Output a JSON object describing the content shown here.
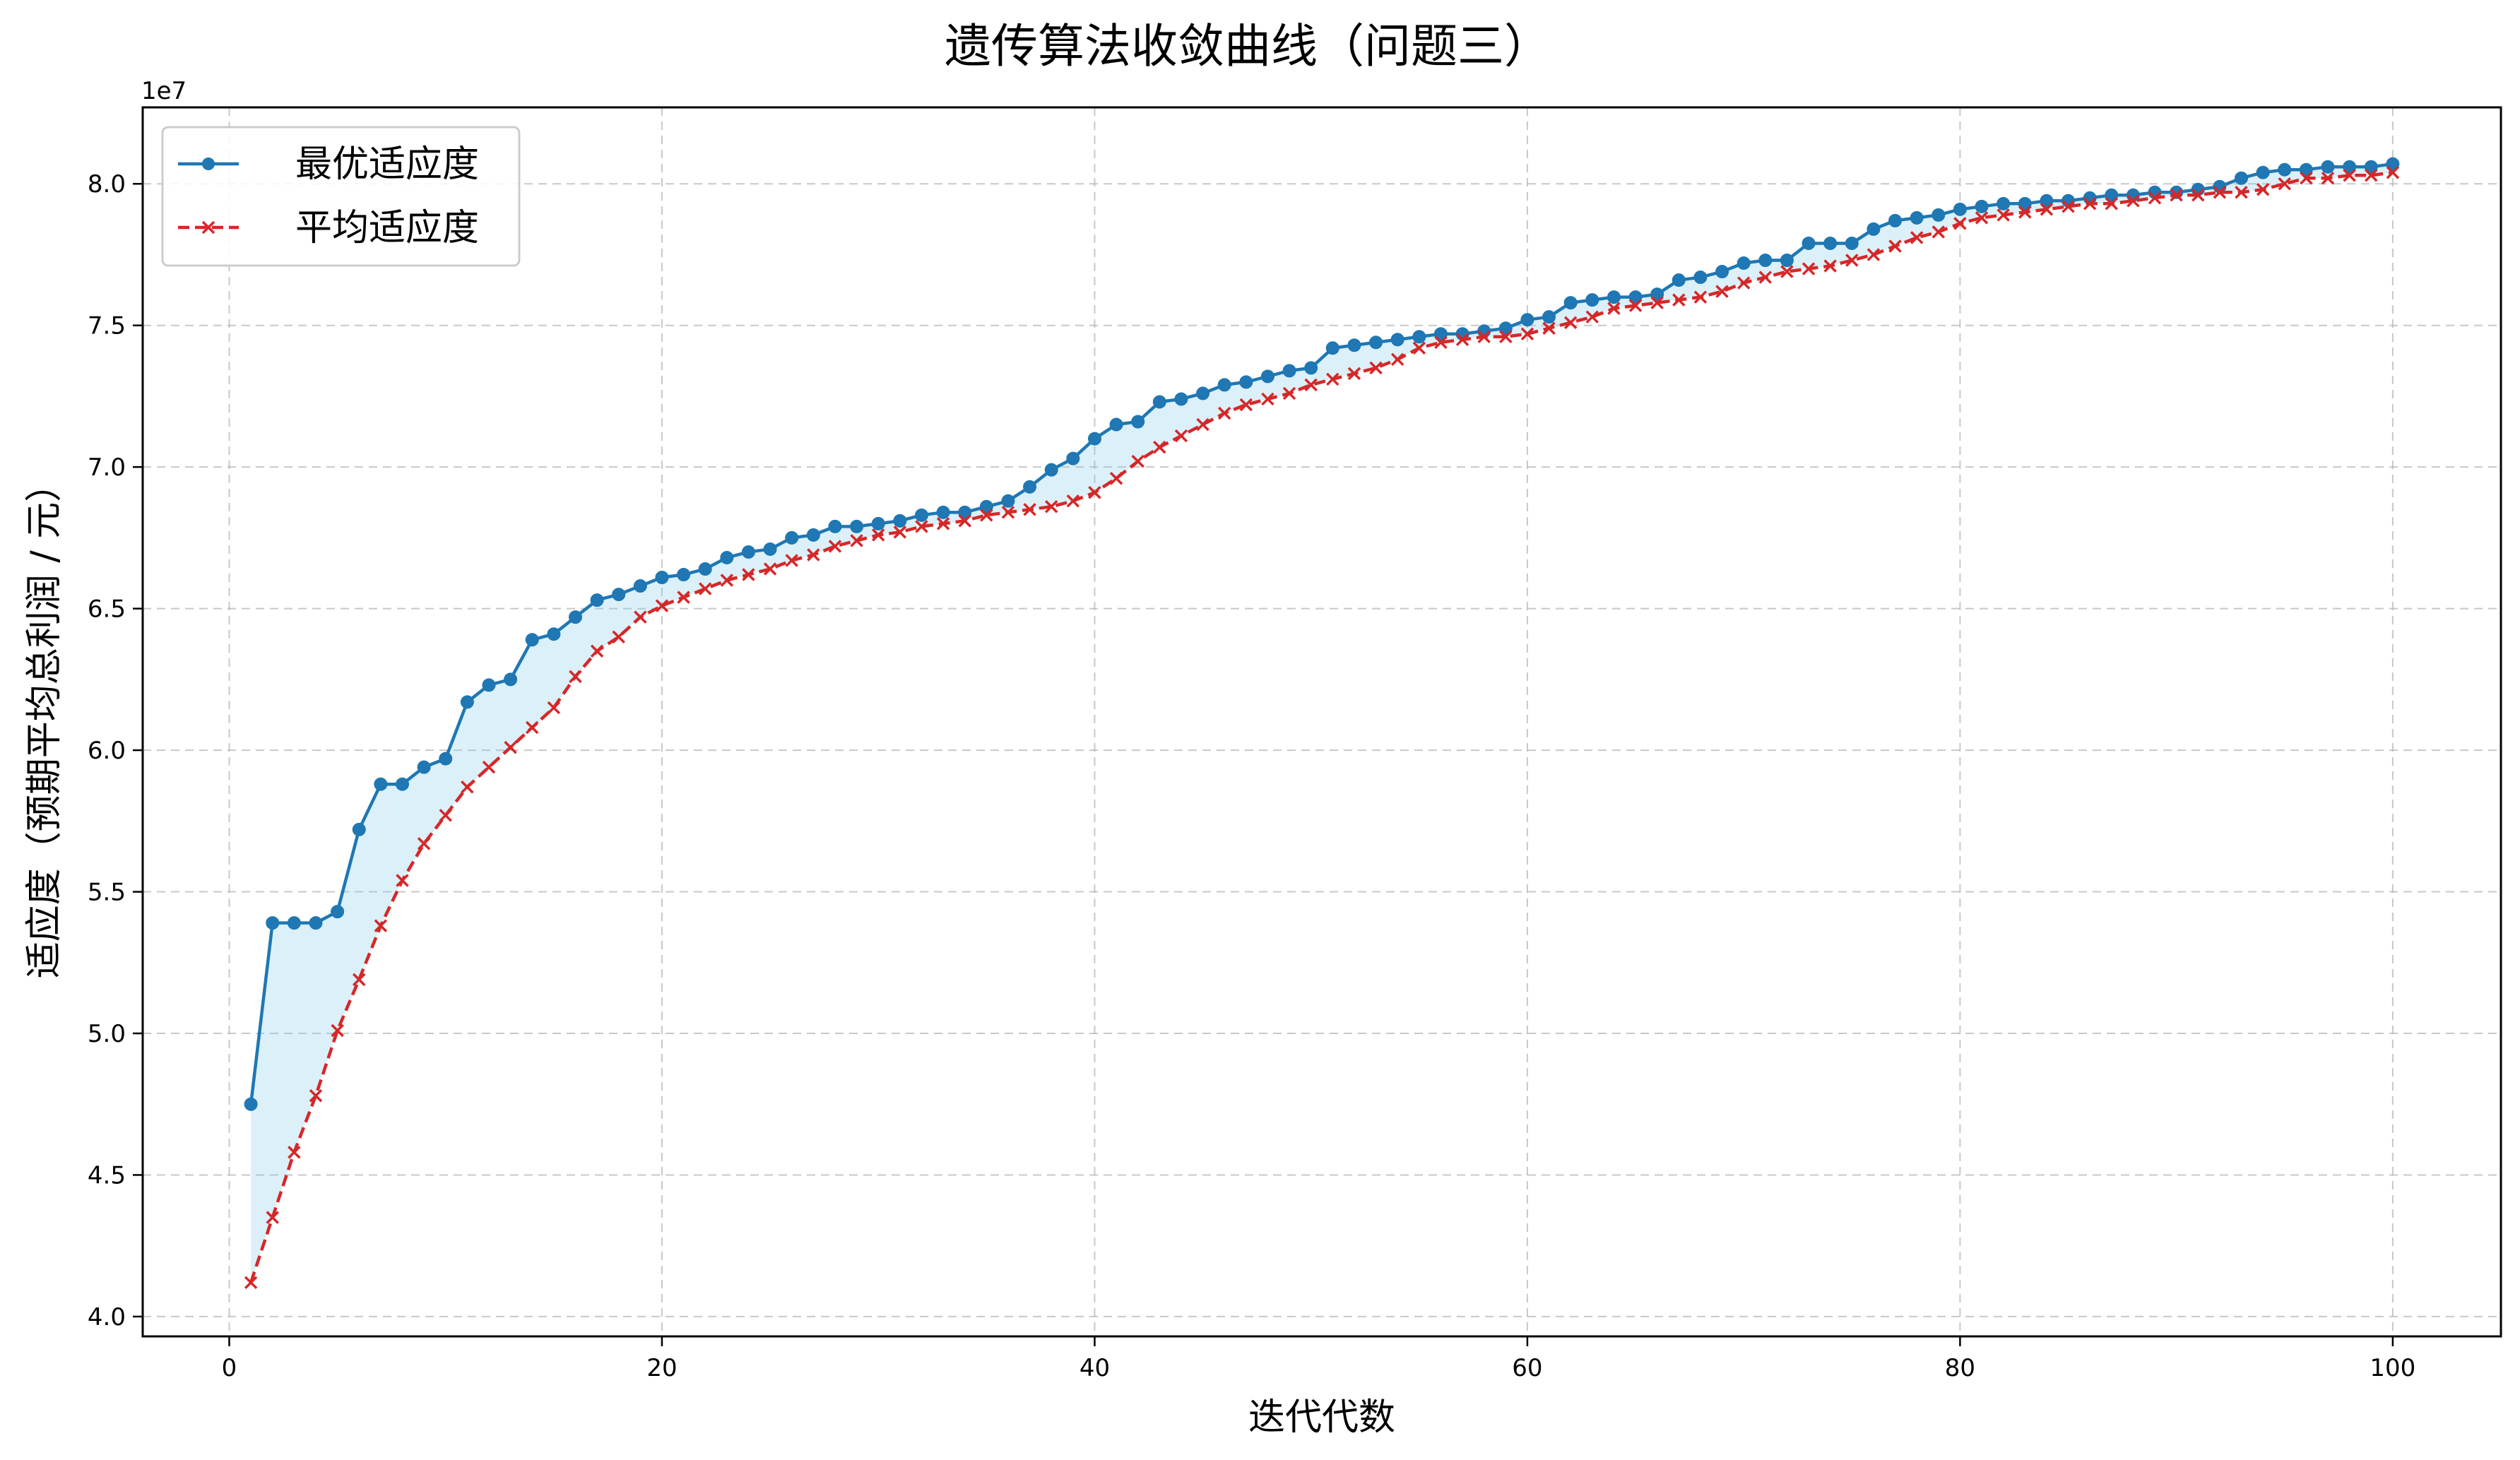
{
  "chart_data": {
    "type": "line",
    "title": "遗传算法收敛曲线（问题三）",
    "xlabel": "迭代代数",
    "ylabel": "适应度（预期平均总利润 / 元）",
    "y_offset_label": "1e7",
    "xlim": [
      -4,
      105
    ],
    "ylim": [
      39300000.0,
      82700000.0
    ],
    "x_ticks": [
      0,
      20,
      40,
      60,
      80,
      100
    ],
    "y_ticks": [
      40000000.0,
      45000000.0,
      50000000.0,
      55000000.0,
      60000000.0,
      65000000.0,
      70000000.0,
      75000000.0,
      80000000.0
    ],
    "y_tick_labels": [
      "4.0",
      "4.5",
      "5.0",
      "5.5",
      "6.0",
      "6.5",
      "7.0",
      "7.5",
      "8.0"
    ],
    "grid": true,
    "legend_position": "upper-left",
    "fill_between_color": "#87ceeb",
    "series": [
      {
        "name": "最优适应度",
        "color": "#1f77b4",
        "line_style": "solid",
        "marker": "circle",
        "x": [
          1,
          2,
          3,
          4,
          5,
          6,
          7,
          8,
          9,
          10,
          11,
          12,
          13,
          14,
          15,
          16,
          17,
          18,
          19,
          20,
          21,
          22,
          23,
          24,
          25,
          26,
          27,
          28,
          29,
          30,
          31,
          32,
          33,
          34,
          35,
          36,
          37,
          38,
          39,
          40,
          41,
          42,
          43,
          44,
          45,
          46,
          47,
          48,
          49,
          50,
          51,
          52,
          53,
          54,
          55,
          56,
          57,
          58,
          59,
          60,
          61,
          62,
          63,
          64,
          65,
          66,
          67,
          68,
          69,
          70,
          71,
          72,
          73,
          74,
          75,
          76,
          77,
          78,
          79,
          80,
          81,
          82,
          83,
          84,
          85,
          86,
          87,
          88,
          89,
          90,
          91,
          92,
          93,
          94,
          95,
          96,
          97,
          98,
          99,
          100
        ],
        "values": [
          47500000,
          53900000,
          53900000,
          53900000,
          54300000,
          57200000,
          58800000,
          58800000,
          59400000,
          59700000,
          61700000,
          62300000,
          62500000,
          63900000,
          64100000,
          64700000,
          65300000,
          65500000,
          65800000,
          66100000,
          66200000,
          66400000,
          66800000,
          67000000,
          67100000,
          67500000,
          67600000,
          67900000,
          67900000,
          68000000,
          68100000,
          68300000,
          68400000,
          68400000,
          68600000,
          68800000,
          69300000,
          69900000,
          70300000,
          71000000,
          71500000,
          71600000,
          72300000,
          72400000,
          72600000,
          72900000,
          73000000,
          73200000,
          73400000,
          73500000,
          74200000,
          74300000,
          74400000,
          74500000,
          74600000,
          74700000,
          74700000,
          74800000,
          74900000,
          75200000,
          75300000,
          75800000,
          75900000,
          76000000,
          76000000,
          76100000,
          76600000,
          76700000,
          76900000,
          77200000,
          77300000,
          77300000,
          77900000,
          77900000,
          77900000,
          78400000,
          78700000,
          78800000,
          78900000,
          79100000,
          79200000,
          79300000,
          79300000,
          79400000,
          79400000,
          79500000,
          79600000,
          79600000,
          79700000,
          79700000,
          79800000,
          79900000,
          80200000,
          80400000,
          80500000,
          80500000,
          80600000,
          80600000,
          80600000,
          80700000
        ]
      },
      {
        "name": "平均适应度",
        "color": "#d62728",
        "line_style": "dashed",
        "marker": "x",
        "x": [
          1,
          2,
          3,
          4,
          5,
          6,
          7,
          8,
          9,
          10,
          11,
          12,
          13,
          14,
          15,
          16,
          17,
          18,
          19,
          20,
          21,
          22,
          23,
          24,
          25,
          26,
          27,
          28,
          29,
          30,
          31,
          32,
          33,
          34,
          35,
          36,
          37,
          38,
          39,
          40,
          41,
          42,
          43,
          44,
          45,
          46,
          47,
          48,
          49,
          50,
          51,
          52,
          53,
          54,
          55,
          56,
          57,
          58,
          59,
          60,
          61,
          62,
          63,
          64,
          65,
          66,
          67,
          68,
          69,
          70,
          71,
          72,
          73,
          74,
          75,
          76,
          77,
          78,
          79,
          80,
          81,
          82,
          83,
          84,
          85,
          86,
          87,
          88,
          89,
          90,
          91,
          92,
          93,
          94,
          95,
          96,
          97,
          98,
          99,
          100
        ],
        "values": [
          41200000,
          43500000,
          45800000,
          47800000,
          50100000,
          51900000,
          53800000,
          55400000,
          56700000,
          57700000,
          58700000,
          59400000,
          60100000,
          60800000,
          61500000,
          62600000,
          63500000,
          64000000,
          64700000,
          65100000,
          65400000,
          65700000,
          66000000,
          66200000,
          66400000,
          66700000,
          66900000,
          67200000,
          67400000,
          67600000,
          67700000,
          67900000,
          68000000,
          68100000,
          68300000,
          68400000,
          68500000,
          68600000,
          68800000,
          69100000,
          69600000,
          70200000,
          70700000,
          71100000,
          71500000,
          71900000,
          72200000,
          72400000,
          72600000,
          72900000,
          73100000,
          73300000,
          73500000,
          73800000,
          74200000,
          74400000,
          74500000,
          74600000,
          74600000,
          74700000,
          74900000,
          75100000,
          75300000,
          75600000,
          75700000,
          75800000,
          75900000,
          76000000,
          76200000,
          76500000,
          76700000,
          76900000,
          77000000,
          77100000,
          77300000,
          77500000,
          77800000,
          78100000,
          78300000,
          78600000,
          78800000,
          78900000,
          79000000,
          79100000,
          79200000,
          79300000,
          79300000,
          79400000,
          79500000,
          79600000,
          79600000,
          79700000,
          79700000,
          79800000,
          80000000,
          80200000,
          80200000,
          80300000,
          80300000,
          80400000
        ]
      }
    ]
  }
}
